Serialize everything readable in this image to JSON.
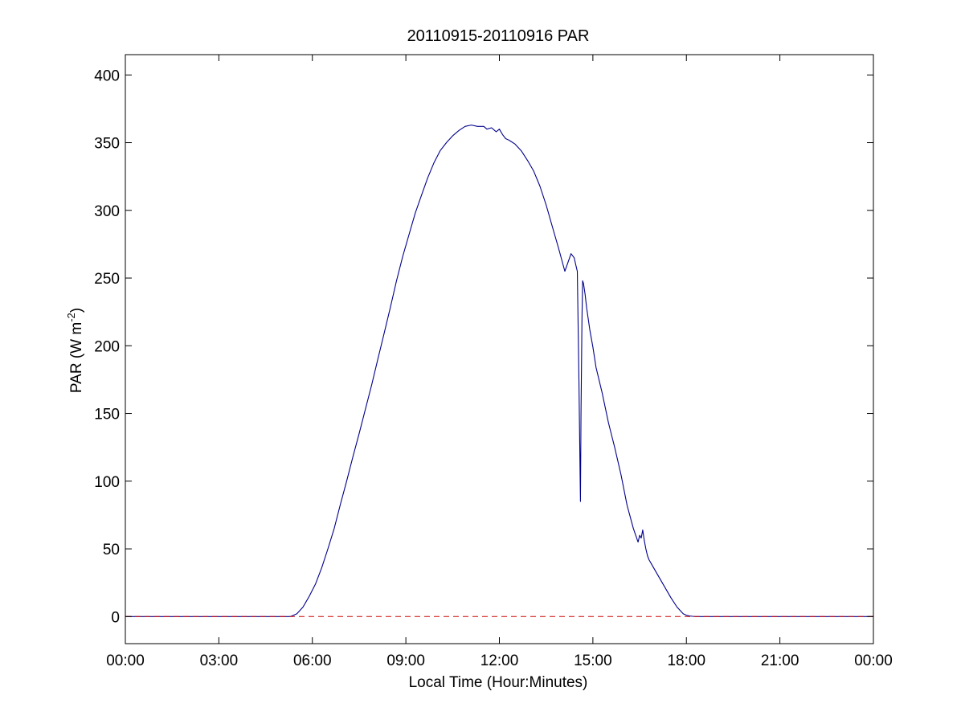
{
  "chart_data": {
    "type": "line",
    "title": "20110915-20110916 PAR",
    "xlabel": "Local Time (Hour:Minutes)",
    "ylabel": {
      "prefix": "PAR (W m",
      "superscript": "-2",
      "suffix": ")"
    },
    "xlim": [
      0,
      24
    ],
    "ylim": [
      -20,
      415
    ],
    "x_ticks": [
      0,
      3,
      6,
      9,
      12,
      15,
      18,
      21,
      24
    ],
    "x_tick_labels": [
      "00:00",
      "03:00",
      "06:00",
      "09:00",
      "12:00",
      "15:00",
      "18:00",
      "21:00",
      "00:00"
    ],
    "y_ticks": [
      0,
      50,
      100,
      150,
      200,
      250,
      300,
      350,
      400
    ],
    "y_tick_labels": [
      "0",
      "50",
      "100",
      "150",
      "200",
      "250",
      "300",
      "350",
      "400"
    ],
    "grid": false,
    "series": [
      {
        "color": "#00008b",
        "style": "solid",
        "x": [
          0,
          5.3,
          5.5,
          5.7,
          5.9,
          6.1,
          6.3,
          6.5,
          6.7,
          6.9,
          7.1,
          7.3,
          7.5,
          7.7,
          7.9,
          8.1,
          8.3,
          8.5,
          8.7,
          8.9,
          9.1,
          9.3,
          9.5,
          9.7,
          9.9,
          10.1,
          10.3,
          10.5,
          10.7,
          10.9,
          11.1,
          11.3,
          11.5,
          11.6,
          11.75,
          11.85,
          11.9,
          12.0,
          12.1,
          12.2,
          12.3,
          12.5,
          12.7,
          12.9,
          13.1,
          13.3,
          13.5,
          13.7,
          13.9,
          14.1,
          14.3,
          14.4,
          14.45,
          14.5,
          14.55,
          14.6,
          14.62,
          14.65,
          14.67,
          14.7,
          14.75,
          14.8,
          14.9,
          15.0,
          15.1,
          15.3,
          15.5,
          15.7,
          15.9,
          16.1,
          16.3,
          16.45,
          16.5,
          16.55,
          16.6,
          16.65,
          16.7,
          16.75,
          16.8,
          16.9,
          17.1,
          17.3,
          17.5,
          17.7,
          17.9,
          18.0,
          18.1,
          18.2,
          18.3,
          18.5,
          24
        ],
        "y": [
          0,
          0,
          2,
          7,
          15,
          24,
          36,
          50,
          65,
          83,
          100,
          118,
          135,
          153,
          171,
          190,
          209,
          228,
          248,
          266,
          282,
          298,
          311,
          324,
          335,
          344,
          350,
          355,
          359,
          362,
          363,
          362,
          362,
          360,
          361,
          359,
          358,
          360,
          356,
          353,
          352,
          349,
          344,
          337,
          329,
          318,
          304,
          288,
          272,
          255,
          268,
          265,
          260,
          255,
          180,
          85,
          150,
          220,
          248,
          246,
          238,
          228,
          212,
          199,
          184,
          165,
          143,
          125,
          105,
          82,
          65,
          55,
          60,
          58,
          64,
          56,
          50,
          45,
          42,
          38,
          30,
          22,
          14,
          7,
          2,
          1,
          0.5,
          0.2,
          0,
          0,
          0
        ]
      },
      {
        "color": "#cc0000",
        "style": "dashed",
        "x": [
          0,
          24
        ],
        "y": [
          0,
          0
        ]
      }
    ]
  }
}
